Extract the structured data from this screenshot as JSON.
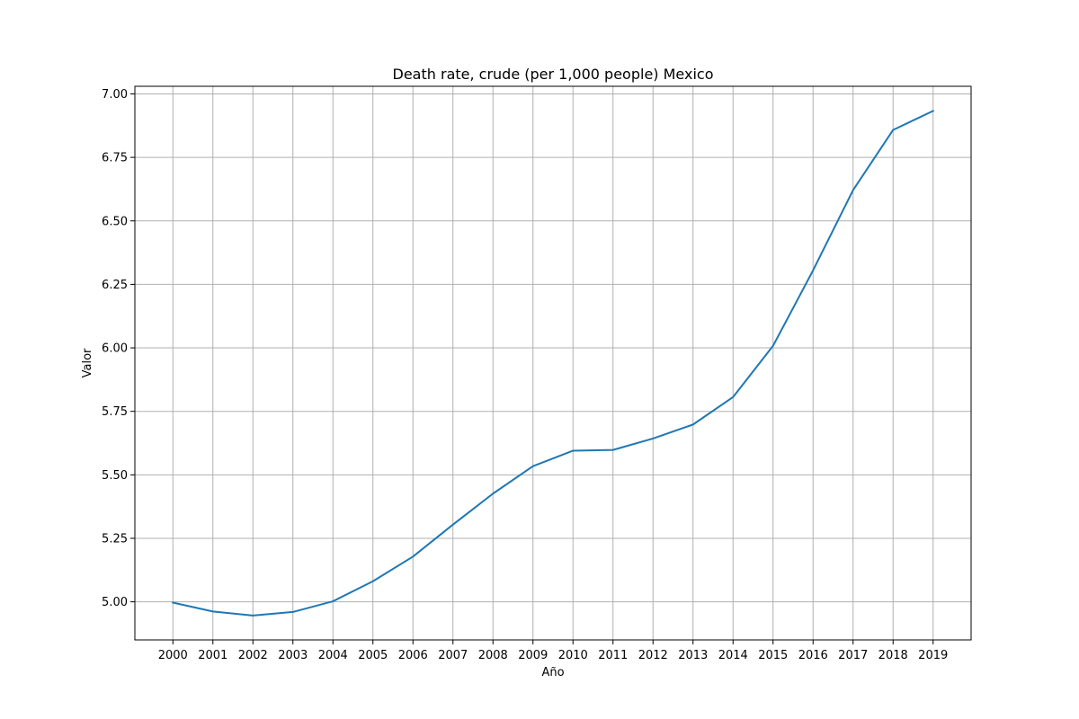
{
  "chart_data": {
    "type": "line",
    "title": "Death rate, crude (per 1,000 people) Mexico",
    "xlabel": "Año",
    "ylabel": "Valor",
    "x": [
      2000,
      2001,
      2002,
      2003,
      2004,
      2005,
      2006,
      2007,
      2008,
      2009,
      2010,
      2011,
      2012,
      2013,
      2014,
      2015,
      2016,
      2017,
      2018,
      2019
    ],
    "series": [
      {
        "values": [
          4.997,
          4.962,
          4.946,
          4.96,
          5.002,
          5.081,
          5.178,
          5.304,
          5.426,
          5.534,
          5.595,
          5.598,
          5.643,
          5.698,
          5.806,
          6.008,
          6.305,
          6.621,
          6.858,
          6.933
        ],
        "color": "#1f77b4"
      }
    ],
    "xlim": [
      1999.05,
      2019.95
    ],
    "ylim": [
      4.85,
      7.03
    ],
    "yticks": [
      5.0,
      5.25,
      5.5,
      5.75,
      6.0,
      6.25,
      6.5,
      6.75,
      7.0
    ],
    "ytick_labels": [
      "5.00",
      "5.25",
      "5.50",
      "5.75",
      "6.00",
      "6.25",
      "6.50",
      "6.75",
      "7.00"
    ],
    "grid": true
  }
}
